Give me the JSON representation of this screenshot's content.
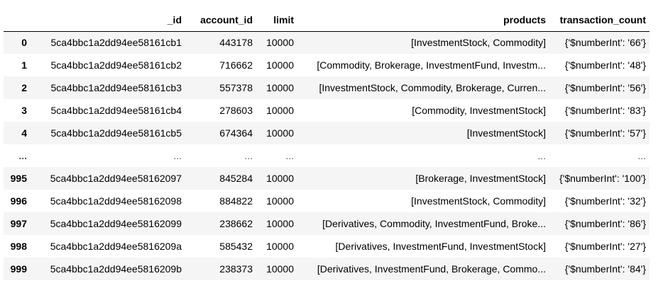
{
  "table": {
    "columns": [
      "",
      "_id",
      "account_id",
      "limit",
      "products",
      "transaction_count"
    ],
    "rows": [
      {
        "index": "0",
        "id": "5ca4bbc1a2dd94ee58161cb1",
        "account_id": "443178",
        "limit": "10000",
        "products": "[InvestmentStock, Commodity]",
        "transaction_count": "{'$numberInt': '66'}"
      },
      {
        "index": "1",
        "id": "5ca4bbc1a2dd94ee58161cb2",
        "account_id": "716662",
        "limit": "10000",
        "products": "[Commodity, Brokerage, InvestmentFund, Investm...",
        "transaction_count": "{'$numberInt': '48'}"
      },
      {
        "index": "2",
        "id": "5ca4bbc1a2dd94ee58161cb3",
        "account_id": "557378",
        "limit": "10000",
        "products": "[InvestmentStock, Commodity, Brokerage, Curren...",
        "transaction_count": "{'$numberInt': '56'}"
      },
      {
        "index": "3",
        "id": "5ca4bbc1a2dd94ee58161cb4",
        "account_id": "278603",
        "limit": "10000",
        "products": "[Commodity, InvestmentStock]",
        "transaction_count": "{'$numberInt': '83'}"
      },
      {
        "index": "4",
        "id": "5ca4bbc1a2dd94ee58161cb5",
        "account_id": "674364",
        "limit": "10000",
        "products": "[InvestmentStock]",
        "transaction_count": "{'$numberInt': '57'}"
      },
      {
        "index": "...",
        "id": "...",
        "account_id": "...",
        "limit": "...",
        "products": "...",
        "transaction_count": "..."
      },
      {
        "index": "995",
        "id": "5ca4bbc1a2dd94ee58162097",
        "account_id": "845284",
        "limit": "10000",
        "products": "[Brokerage, InvestmentStock]",
        "transaction_count": "{'$numberInt': '100'}"
      },
      {
        "index": "996",
        "id": "5ca4bbc1a2dd94ee58162098",
        "account_id": "884822",
        "limit": "10000",
        "products": "[InvestmentStock, Commodity]",
        "transaction_count": "{'$numberInt': '32'}"
      },
      {
        "index": "997",
        "id": "5ca4bbc1a2dd94ee58162099",
        "account_id": "238662",
        "limit": "10000",
        "products": "[Derivatives, Commodity, InvestmentFund, Broke...",
        "transaction_count": "{'$numberInt': '86'}"
      },
      {
        "index": "998",
        "id": "5ca4bbc1a2dd94ee5816209a",
        "account_id": "585432",
        "limit": "10000",
        "products": "[Derivatives, InvestmentFund, InvestmentStock]",
        "transaction_count": "{'$numberInt': '27'}"
      },
      {
        "index": "999",
        "id": "5ca4bbc1a2dd94ee5816209b",
        "account_id": "238373",
        "limit": "10000",
        "products": "[Derivatives, InvestmentFund, Brokerage, Commo...",
        "transaction_count": "{'$numberInt': '84'}"
      }
    ]
  }
}
